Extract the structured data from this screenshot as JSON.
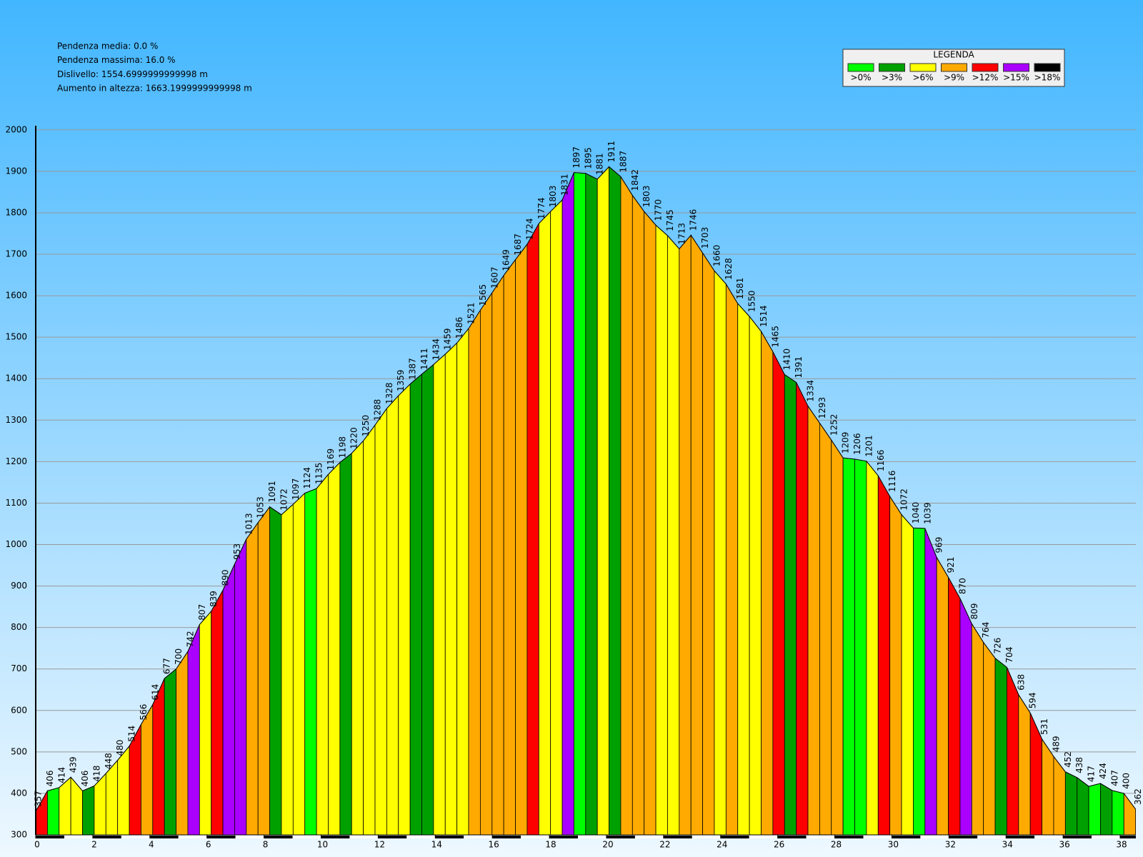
{
  "chart_data": {
    "type": "elevation-profile",
    "stats": [
      "Pendenza media: 0.0 %",
      "Pendenza massima: 16.0 %",
      "Dislivello: 1554.6999999999998 m",
      "Aumento in altezza: 1663.1999999999998 m"
    ],
    "legend_title": "LEGENDA",
    "legend": [
      {
        "label": ">0%",
        "color": "#00ff00"
      },
      {
        "label": ">3%",
        "color": "#00a000"
      },
      {
        "label": ">6%",
        "color": "#ffff00"
      },
      {
        "label": ">9%",
        "color": "#ffaa00"
      },
      {
        "label": ">12%",
        "color": "#ff0000"
      },
      {
        "label": ">15%",
        "color": "#aa00ff"
      },
      {
        "label": ">18%",
        "color": "#000000"
      }
    ],
    "x": [
      0,
      0.41,
      0.82,
      1.23,
      1.64,
      2.05,
      2.46,
      2.87,
      3.28,
      3.69,
      4.1,
      4.51,
      4.92,
      5.33,
      5.74,
      6.15,
      6.56,
      6.97,
      7.38,
      7.79,
      8.2,
      8.61,
      9.02,
      9.43,
      9.84,
      10.25,
      10.66,
      11.07,
      11.48,
      11.89,
      12.3,
      12.71,
      13.12,
      13.53,
      13.94,
      14.35,
      14.76,
      15.17,
      15.58,
      15.99,
      16.4,
      16.81,
      17.22,
      17.63,
      18.04,
      18.45,
      18.86,
      19.27,
      19.68,
      20.09,
      20.5,
      20.91,
      21.32,
      21.73,
      22.14,
      22.55,
      22.96,
      23.37,
      23.78,
      24.19,
      24.6,
      25.01,
      25.42,
      25.83,
      26.24,
      26.65,
      27.06,
      27.47,
      27.88,
      28.29,
      28.7,
      29.11,
      29.52,
      29.93,
      30.34,
      30.75,
      31.16,
      31.57,
      31.98,
      32.39,
      32.8,
      33.21,
      33.62,
      34.03,
      34.44,
      34.85,
      35.26,
      35.67,
      36.08,
      36.49,
      36.9,
      37.31,
      37.72,
      38.13,
      38.54
    ],
    "values": [
      357,
      406,
      414,
      439,
      406,
      418,
      448,
      480,
      514,
      566,
      614,
      677,
      700,
      742,
      807,
      839,
      890,
      953,
      1013,
      1053,
      1091,
      1072,
      1097,
      1124,
      1135,
      1169,
      1198,
      1220,
      1250,
      1288,
      1328,
      1359,
      1387,
      1411,
      1434,
      1459,
      1486,
      1521,
      1565,
      1607,
      1649,
      1687,
      1724,
      1774,
      1803,
      1831,
      1897,
      1895,
      1881,
      1911,
      1887,
      1842,
      1803,
      1770,
      1745,
      1713,
      1746,
      1703,
      1660,
      1628,
      1581,
      1550,
      1514,
      1465,
      1410,
      1391,
      1334,
      1293,
      1252,
      1209,
      1206,
      1201,
      1166,
      1116,
      1072,
      1040,
      1039,
      969,
      921,
      870,
      809,
      764,
      726,
      704,
      638,
      594,
      531,
      489,
      452,
      438,
      417,
      424,
      407,
      400,
      362
    ],
    "segment_colors": [
      "#ff0000",
      "#00ff00",
      "#ffff00",
      "#ffff00",
      "#00a000",
      "#ffff00",
      "#ffff00",
      "#ffff00",
      "#ff0000",
      "#ffaa00",
      "#ff0000",
      "#00a000",
      "#ffaa00",
      "#aa00ff",
      "#ffff00",
      "#ff0000",
      "#aa00ff",
      "#aa00ff",
      "#ffaa00",
      "#ffaa00",
      "#00a000",
      "#ffff00",
      "#ffff00",
      "#00ff00",
      "#ffff00",
      "#ffff00",
      "#00a000",
      "#ffff00",
      "#ffff00",
      "#ffff00",
      "#ffff00",
      "#ffff00",
      "#00a000",
      "#00a000",
      "#ffff00",
      "#ffff00",
      "#ffff00",
      "#ffaa00",
      "#ffaa00",
      "#ffaa00",
      "#ffaa00",
      "#ffaa00",
      "#ff0000",
      "#ffff00",
      "#ffff00",
      "#aa00ff",
      "#00ff00",
      "#00a000",
      "#ffff00",
      "#00a000",
      "#ffaa00",
      "#ffaa00",
      "#ffaa00",
      "#ffff00",
      "#ffff00",
      "#ffaa00",
      "#ffaa00",
      "#ffaa00",
      "#ffff00",
      "#ffaa00",
      "#ffff00",
      "#ffff00",
      "#ffaa00",
      "#ff0000",
      "#00a000",
      "#ff0000",
      "#ffaa00",
      "#ffaa00",
      "#ffaa00",
      "#00ff00",
      "#00ff00",
      "#ffff00",
      "#ff0000",
      "#ffaa00",
      "#ffff00",
      "#00ff00",
      "#aa00ff",
      "#ffaa00",
      "#ff0000",
      "#aa00ff",
      "#ffaa00",
      "#ffaa00",
      "#00a000",
      "#ff0000",
      "#ffaa00",
      "#ff0000",
      "#ffaa00",
      "#ffaa00",
      "#00a000",
      "#00a000",
      "#00ff00",
      "#00a000",
      "#00ff00",
      "#ffaa00"
    ],
    "xlim": [
      0,
      38.55
    ],
    "xticks": [
      0,
      2,
      4,
      6,
      8,
      10,
      12,
      14,
      16,
      18,
      20,
      22,
      24,
      26,
      28,
      30,
      32,
      34,
      36,
      38
    ],
    "ylim": [
      300,
      2010
    ],
    "yticks": [
      300,
      400,
      500,
      600,
      700,
      800,
      900,
      1000,
      1100,
      1200,
      1300,
      1400,
      1500,
      1600,
      1700,
      1800,
      1900,
      2000
    ],
    "grid": true
  }
}
